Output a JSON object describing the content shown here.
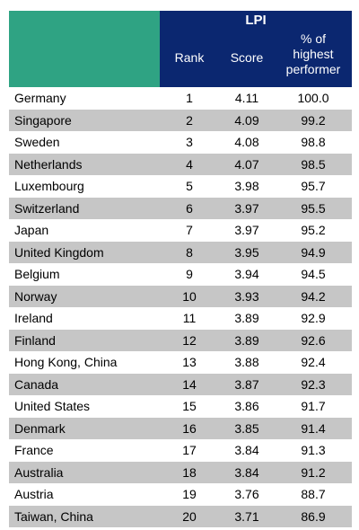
{
  "header": {
    "group_title": "LPI",
    "col_rank": "Rank",
    "col_score": "Score",
    "col_pct_line1": "% of",
    "col_pct_line2": "highest",
    "col_pct_line3": "performer"
  },
  "rows": [
    {
      "country": "Germany",
      "rank": "1",
      "score": "4.11",
      "pct": "100.0"
    },
    {
      "country": "Singapore",
      "rank": "2",
      "score": "4.09",
      "pct": "99.2"
    },
    {
      "country": "Sweden",
      "rank": "3",
      "score": "4.08",
      "pct": "98.8"
    },
    {
      "country": "Netherlands",
      "rank": "4",
      "score": "4.07",
      "pct": "98.5"
    },
    {
      "country": "Luxembourg",
      "rank": "5",
      "score": "3.98",
      "pct": "95.7"
    },
    {
      "country": "Switzerland",
      "rank": "6",
      "score": "3.97",
      "pct": "95.5"
    },
    {
      "country": "Japan",
      "rank": "7",
      "score": "3.97",
      "pct": "95.2"
    },
    {
      "country": "United Kingdom",
      "rank": "8",
      "score": "3.95",
      "pct": "94.9"
    },
    {
      "country": "Belgium",
      "rank": "9",
      "score": "3.94",
      "pct": "94.5"
    },
    {
      "country": "Norway",
      "rank": "10",
      "score": "3.93",
      "pct": "94.2"
    },
    {
      "country": "Ireland",
      "rank": "11",
      "score": "3.89",
      "pct": "92.9"
    },
    {
      "country": "Finland",
      "rank": "12",
      "score": "3.89",
      "pct": "92.6"
    },
    {
      "country": "Hong Kong, China",
      "rank": "13",
      "score": "3.88",
      "pct": "92.4"
    },
    {
      "country": "Canada",
      "rank": "14",
      "score": "3.87",
      "pct": "92.3"
    },
    {
      "country": "United States",
      "rank": "15",
      "score": "3.86",
      "pct": "91.7"
    },
    {
      "country": "Denmark",
      "rank": "16",
      "score": "3.85",
      "pct": "91.4"
    },
    {
      "country": "France",
      "rank": "17",
      "score": "3.84",
      "pct": "91.3"
    },
    {
      "country": "Australia",
      "rank": "18",
      "score": "3.84",
      "pct": "91.2"
    },
    {
      "country": "Austria",
      "rank": "19",
      "score": "3.76",
      "pct": "88.7"
    },
    {
      "country": "Taiwan, China",
      "rank": "20",
      "score": "3.71",
      "pct": "86.9"
    }
  ],
  "colors": {
    "header_green": "#2fa383",
    "header_navy": "#0b2770",
    "row_shade": "#c6c6c6"
  }
}
